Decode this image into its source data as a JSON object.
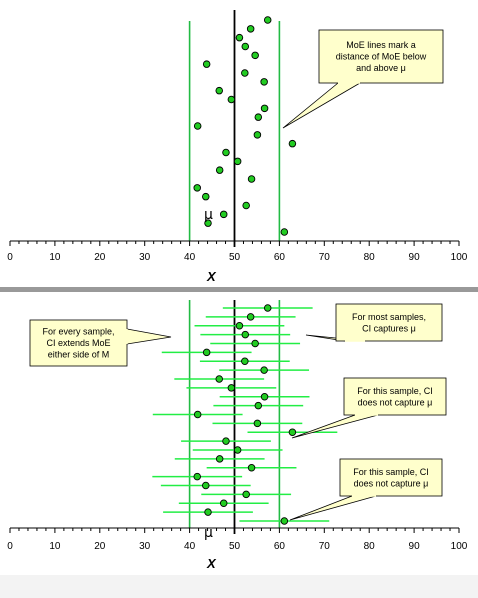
{
  "chart_data": [
    {
      "type": "scatter",
      "xlabel": "X",
      "xlim": [
        0,
        100
      ],
      "xticks": [
        "0",
        "10",
        "20",
        "30",
        "40",
        "50",
        "60",
        "70",
        "80",
        "90",
        "100"
      ],
      "mu": 50,
      "moe": 10,
      "mu_label": "μ",
      "points": [
        57.4,
        53.6,
        51.1,
        52.4,
        54.6,
        43.8,
        52.3,
        56.6,
        46.6,
        49.3,
        56.7,
        55.3,
        41.8,
        55.1,
        62.9,
        48.1,
        50.7,
        46.7,
        53.8,
        41.7,
        43.6,
        52.6,
        47.6,
        44.1,
        61.1
      ],
      "callouts": [
        {
          "id": "moe",
          "lines": [
            "MoE lines mark a",
            "distance of MoE below",
            "and above μ"
          ]
        }
      ]
    },
    {
      "type": "scatter",
      "xlabel": "X",
      "xlim": [
        0,
        100
      ],
      "xticks": [
        "0",
        "10",
        "20",
        "30",
        "40",
        "50",
        "60",
        "70",
        "80",
        "90",
        "100"
      ],
      "mu": 50,
      "moe": 10,
      "mu_label": "μ",
      "ci_points": [
        57.4,
        53.6,
        51.1,
        52.4,
        54.6,
        43.8,
        52.3,
        56.6,
        46.6,
        49.3,
        56.7,
        55.3,
        41.8,
        55.1,
        62.9,
        48.1,
        50.7,
        46.7,
        53.8,
        41.7,
        43.6,
        52.6,
        47.6,
        44.1,
        61.1
      ],
      "callouts": [
        {
          "id": "every",
          "lines": [
            "For every sample,",
            "CI extends MoE",
            "either side of M"
          ]
        },
        {
          "id": "most",
          "lines": [
            "For most samples,",
            "CI captures μ"
          ]
        },
        {
          "id": "miss1",
          "lines": [
            "For this sample, CI",
            "does not capture μ"
          ]
        },
        {
          "id": "miss2",
          "lines": [
            "For this sample, CI",
            "does not capture μ"
          ]
        }
      ]
    }
  ],
  "colors": {
    "point_fill": "#22cc22",
    "moe_line": "#22bb44",
    "ci_line": "#22ee44",
    "callout_fill": "#ffffcc",
    "divider": "#999999"
  }
}
